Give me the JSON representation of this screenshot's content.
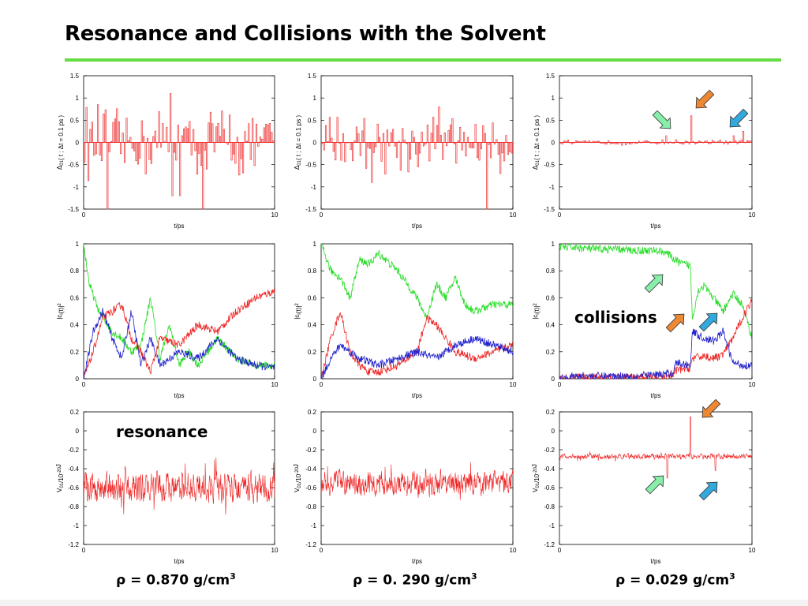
{
  "slide": {
    "title": "Resonance and Collisions with the Solvent",
    "accent_color": "#66dd44",
    "labels": {
      "resonance": "resonance",
      "collisions": "collisions"
    },
    "densities": [
      {
        "prefix": "ρ = 0.870 g/cm",
        "sup": "3"
      },
      {
        "prefix": "ρ = 0. 290 g/cm",
        "sup": "3"
      },
      {
        "prefix": "ρ = 0.029 g/cm",
        "sup": "3"
      }
    ],
    "arrow_colors": {
      "mint": "#88eeaa",
      "orange": "#ee8833",
      "blue": "#33aadd"
    }
  },
  "chart_data": [
    {
      "type": "bar",
      "panel": "delta",
      "density": "0.870",
      "xlabel": "t/ps",
      "ylabel": "Δ01( t ; Δt = 0.1 ps )",
      "xlim": [
        0,
        10
      ],
      "ylim": [
        -1.5,
        1.5
      ],
      "xticks": [
        0,
        10
      ],
      "yticks": [
        -1.5,
        -1,
        -0.5,
        0,
        0.5,
        1,
        1.5
      ],
      "color": "#ee3333",
      "amplitude": 0.55,
      "spikes": [
        [
          1.2,
          -1.5
        ],
        [
          4.6,
          -1.2
        ],
        [
          5.0,
          -1.2
        ],
        [
          6.2,
          -1.5
        ],
        [
          4.5,
          1.1
        ]
      ]
    },
    {
      "type": "bar",
      "panel": "delta",
      "density": "0.290",
      "xlabel": "t/ps",
      "ylabel": "Δ01( t ; Δt = 0.1 ps )",
      "xlim": [
        0,
        10
      ],
      "ylim": [
        -1.5,
        1.5
      ],
      "xticks": [
        0,
        10
      ],
      "yticks": [
        -1.5,
        -1,
        -0.5,
        0,
        0.5,
        1,
        1.5
      ],
      "color": "#ee3333",
      "amplitude": 0.45,
      "spikes": [
        [
          8.6,
          -1.5
        ],
        [
          2.6,
          -0.9
        ],
        [
          9.3,
          -0.7
        ],
        [
          6.1,
          0.8
        ]
      ]
    },
    {
      "type": "bar",
      "panel": "delta",
      "density": "0.029",
      "xlabel": "t/ps",
      "ylabel": "Δ01( t ; Δt = 0.1 ps )",
      "xlim": [
        0,
        10
      ],
      "ylim": [
        -1.5,
        1.5
      ],
      "xticks": [
        0,
        10
      ],
      "yticks": [
        -1.5,
        -1,
        -0.5,
        0,
        0.5,
        1,
        1.5
      ],
      "color": "#ee3333",
      "amplitude": 0.04,
      "spikes": [
        [
          6.8,
          0.6
        ],
        [
          5.5,
          0.15
        ],
        [
          9.5,
          0.25
        ],
        [
          9.0,
          0.15
        ]
      ]
    },
    {
      "type": "line",
      "panel": "population",
      "density": "0.870",
      "xlabel": "t/ps",
      "ylabel": "|ci(t)|2",
      "xlim": [
        0,
        10
      ],
      "ylim": [
        0,
        1
      ],
      "xticks": [
        0,
        10
      ],
      "yticks": [
        0,
        0.2,
        0.4,
        0.6,
        0.8,
        1
      ],
      "series": [
        {
          "color": "#22dd22",
          "x": [
            0,
            0.3,
            0.8,
            1.5,
            2,
            2.5,
            3,
            3.5,
            4,
            4.5,
            5,
            5.5,
            6,
            7,
            8,
            9,
            10
          ],
          "y": [
            1,
            0.7,
            0.5,
            0.35,
            0.3,
            0.2,
            0.25,
            0.6,
            0.15,
            0.4,
            0.1,
            0.2,
            0.1,
            0.3,
            0.15,
            0.1,
            0.1
          ]
        },
        {
          "color": "#ee2222",
          "x": [
            0,
            0.5,
            1,
            1.5,
            2,
            2.5,
            3,
            3.5,
            4,
            5,
            6,
            7,
            8,
            9,
            10
          ],
          "y": [
            0,
            0.2,
            0.45,
            0.5,
            0.55,
            0.3,
            0.2,
            0.05,
            0.3,
            0.25,
            0.4,
            0.35,
            0.5,
            0.6,
            0.65
          ]
        },
        {
          "color": "#2222cc",
          "x": [
            0,
            0.5,
            1,
            1.5,
            2,
            2.5,
            3,
            3.5,
            4,
            5,
            6,
            7,
            8,
            9,
            10
          ],
          "y": [
            0,
            0.35,
            0.5,
            0.3,
            0.15,
            0.5,
            0.1,
            0.3,
            0.1,
            0.2,
            0.15,
            0.3,
            0.15,
            0.1,
            0.08
          ]
        }
      ]
    },
    {
      "type": "line",
      "panel": "population",
      "density": "0.290",
      "xlabel": "t/ps",
      "ylabel": "|ci(t)|2",
      "xlim": [
        0,
        10
      ],
      "ylim": [
        0,
        1
      ],
      "xticks": [
        0,
        10
      ],
      "yticks": [
        0,
        0.2,
        0.4,
        0.6,
        0.8,
        1
      ],
      "series": [
        {
          "color": "#22dd22",
          "x": [
            0,
            0.5,
            1,
            1.5,
            2,
            2.5,
            3,
            4,
            5,
            5.5,
            6,
            6.5,
            7,
            7.5,
            8,
            9,
            10
          ],
          "y": [
            1,
            0.8,
            0.75,
            0.6,
            0.88,
            0.85,
            0.93,
            0.8,
            0.6,
            0.45,
            0.7,
            0.6,
            0.75,
            0.55,
            0.5,
            0.55,
            0.55
          ]
        },
        {
          "color": "#ee2222",
          "x": [
            0,
            0.5,
            1,
            1.5,
            2,
            2.5,
            3,
            4,
            5,
            5.5,
            6,
            7,
            8,
            9,
            10
          ],
          "y": [
            0,
            0.3,
            0.5,
            0.2,
            0.1,
            0.05,
            0.05,
            0.1,
            0.2,
            0.45,
            0.4,
            0.2,
            0.15,
            0.2,
            0.25
          ]
        },
        {
          "color": "#2222cc",
          "x": [
            0,
            0.5,
            1,
            1.5,
            2,
            3,
            4,
            5,
            6,
            7,
            8,
            9,
            10
          ],
          "y": [
            0,
            0.15,
            0.25,
            0.2,
            0.15,
            0.1,
            0.15,
            0.2,
            0.15,
            0.25,
            0.3,
            0.25,
            0.2
          ]
        }
      ]
    },
    {
      "type": "line",
      "panel": "population",
      "density": "0.029",
      "xlabel": "t/ps",
      "ylabel": "|ci(t)|2",
      "xlim": [
        0,
        10
      ],
      "ylim": [
        0,
        1
      ],
      "xticks": [
        0,
        10
      ],
      "yticks": [
        0,
        0.2,
        0.4,
        0.6,
        0.8,
        1
      ],
      "series": [
        {
          "color": "#22dd22",
          "x": [
            0,
            1,
            2,
            3,
            4,
            5,
            5.5,
            6,
            6.4,
            6.8,
            6.9,
            7.2,
            7.5,
            8,
            8.5,
            9,
            9.5,
            10
          ],
          "y": [
            0.98,
            0.97,
            0.96,
            0.96,
            0.95,
            0.95,
            0.94,
            0.88,
            0.85,
            0.84,
            0.45,
            0.65,
            0.69,
            0.6,
            0.5,
            0.63,
            0.55,
            0.3
          ]
        },
        {
          "color": "#ee2222",
          "x": [
            0,
            1,
            2,
            3,
            4,
            5,
            5.9,
            6,
            6.8,
            6.9,
            7.5,
            8,
            8.5,
            9,
            9.5,
            10
          ],
          "y": [
            0,
            0.01,
            0.01,
            0.01,
            0.01,
            0.01,
            0.02,
            0.06,
            0.08,
            0.15,
            0.17,
            0.15,
            0.18,
            0.3,
            0.45,
            0.58
          ]
        },
        {
          "color": "#2222cc",
          "x": [
            0,
            1,
            2,
            3,
            4,
            5,
            5.9,
            6,
            6.8,
            6.9,
            7.5,
            8,
            8.5,
            9,
            9.5,
            10
          ],
          "y": [
            0.01,
            0.02,
            0.02,
            0.02,
            0.02,
            0.03,
            0.04,
            0.12,
            0.1,
            0.35,
            0.3,
            0.28,
            0.35,
            0.12,
            0.1,
            0.1
          ]
        }
      ]
    },
    {
      "type": "line",
      "panel": "coupling",
      "density": "0.870",
      "xlabel": "t/ps",
      "ylabel": "V01/10-20J",
      "xlim": [
        0,
        10
      ],
      "ylim": [
        -1.2,
        0.2
      ],
      "xticks": [
        0,
        10
      ],
      "yticks": [
        -1.2,
        -1,
        -0.8,
        -0.6,
        -0.4,
        -0.2,
        0,
        0.2
      ],
      "color": "#ee2222",
      "mean": -0.6,
      "noise": 0.22
    },
    {
      "type": "line",
      "panel": "coupling",
      "density": "0.290",
      "xlabel": "t/ps",
      "ylabel": "V01/10-20J",
      "xlim": [
        0,
        10
      ],
      "ylim": [
        -1.2,
        0.2
      ],
      "xticks": [
        0,
        10
      ],
      "yticks": [
        -1.2,
        -1,
        -0.8,
        -0.6,
        -0.4,
        -0.2,
        0,
        0.2
      ],
      "color": "#ee2222",
      "mean": -0.55,
      "noise": 0.18
    },
    {
      "type": "line",
      "panel": "coupling",
      "density": "0.029",
      "xlabel": "t/ps",
      "ylabel": "V01/10-20J",
      "xlim": [
        0,
        10
      ],
      "ylim": [
        -1.2,
        0.2
      ],
      "xticks": [
        0,
        10
      ],
      "yticks": [
        -1.2,
        -1,
        -0.8,
        -0.6,
        -0.4,
        -0.2,
        0,
        0.2
      ],
      "color": "#ee2222",
      "mean": -0.27,
      "noise": 0.04,
      "spikes": [
        [
          5.6,
          -0.5
        ],
        [
          6.8,
          0.15
        ],
        [
          8.1,
          -0.42
        ]
      ]
    }
  ]
}
